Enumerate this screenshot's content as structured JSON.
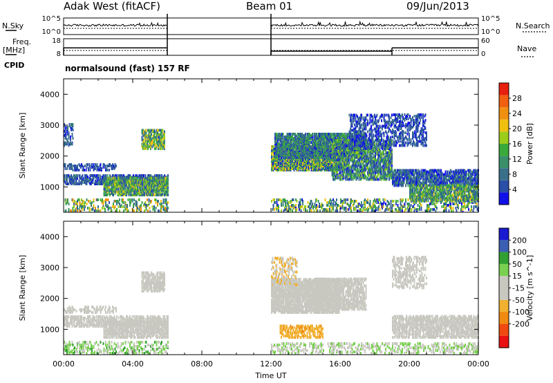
{
  "header": {
    "title": "Adak West (fitACF)",
    "beam": "Beam 01",
    "date": "09/Jun/2013"
  },
  "control_panel": {
    "nsky_label": "N.Sky",
    "nsearch_label": "N.Search",
    "freq_label": "Freq.",
    "freq_unit": "[MHz]",
    "nave_label": "Nave",
    "cpid_label": "CPID",
    "cpid_text": "normalsound (fast) 157 RF",
    "noise_ticks": [
      "10^5",
      "10^0"
    ],
    "noise_ticks_right": [
      "10^5",
      "10^0"
    ],
    "freq_ticks": [
      "18",
      "8"
    ],
    "nave_ticks": [
      "60",
      "0"
    ],
    "freq_segments": [
      {
        "from": 0.0,
        "to": 6.0,
        "value": 12.5
      },
      {
        "from": 12.0,
        "to": 19.0,
        "value": 10.5
      },
      {
        "from": 19.0,
        "to": 24.0,
        "value": 12.5
      }
    ]
  },
  "colors": {
    "power": [
      "#1010e8",
      "#2a4fa8",
      "#3a6f8a",
      "#3a8f6a",
      "#3aaa3a",
      "#9ccc1a",
      "#f0c010",
      "#f09010",
      "#f06010",
      "#e82010"
    ],
    "velocity": [
      "#e81010",
      "#f04a10",
      "#f08a10",
      "#f0b030",
      "#c8c8c0",
      "#c8c8c0",
      "#7ad050",
      "#30a030",
      "#3a5fb0",
      "#1a1ad0"
    ]
  },
  "chart_data": [
    {
      "type": "heatmap",
      "name_tag": "power",
      "ylabel": "Slant Range [km]",
      "ylim": [
        180,
        4500
      ],
      "yticks": [
        1000,
        2000,
        3000,
        4000
      ],
      "xlim": [
        0,
        24
      ],
      "colorbar": {
        "label": "Power [dB]",
        "range": [
          0,
          32
        ],
        "ticks": [
          "4",
          "8",
          "12",
          "16",
          "20",
          "24",
          "28"
        ]
      },
      "echo_regions": [
        {
          "t0": 0.0,
          "t1": 6.0,
          "r0": 180,
          "r1": 550,
          "level": 14,
          "spread": 10,
          "density": 0.22
        },
        {
          "t0": 0.0,
          "t1": 6.0,
          "r0": 1050,
          "r1": 1350,
          "level": 6,
          "spread": 4,
          "density": 0.55
        },
        {
          "t0": 0.0,
          "t1": 3.0,
          "r0": 1500,
          "r1": 1700,
          "level": 5,
          "spread": 3,
          "density": 0.35
        },
        {
          "t0": 2.3,
          "t1": 6.0,
          "r0": 700,
          "r1": 1250,
          "level": 12,
          "spread": 8,
          "density": 0.7
        },
        {
          "t0": 4.5,
          "t1": 5.8,
          "r0": 2200,
          "r1": 2800,
          "level": 14,
          "spread": 8,
          "density": 0.6
        },
        {
          "t0": 0.0,
          "t1": 0.5,
          "r0": 2300,
          "r1": 3000,
          "level": 6,
          "spread": 4,
          "density": 0.35
        },
        {
          "t0": 12.0,
          "t1": 24.0,
          "r0": 180,
          "r1": 550,
          "level": 12,
          "spread": 10,
          "density": 0.25
        },
        {
          "t0": 12.0,
          "t1": 16.0,
          "r0": 1500,
          "r1": 2300,
          "level": 12,
          "spread": 10,
          "density": 0.8
        },
        {
          "t0": 12.2,
          "t1": 17.5,
          "r0": 1900,
          "r1": 2700,
          "level": 9,
          "spread": 7,
          "density": 0.7
        },
        {
          "t0": 15.5,
          "t1": 19.0,
          "r0": 1200,
          "r1": 2500,
          "level": 10,
          "spread": 8,
          "density": 0.55
        },
        {
          "t0": 16.5,
          "t1": 19.0,
          "r0": 2200,
          "r1": 3300,
          "level": 5,
          "spread": 4,
          "density": 0.3
        },
        {
          "t0": 19.0,
          "t1": 24.0,
          "r0": 1000,
          "r1": 1500,
          "level": 6,
          "spread": 5,
          "density": 0.6
        },
        {
          "t0": 20.0,
          "t1": 24.0,
          "r0": 500,
          "r1": 1000,
          "level": 12,
          "spread": 8,
          "density": 0.6
        },
        {
          "t0": 19.0,
          "t1": 21.0,
          "r0": 2300,
          "r1": 3300,
          "level": 5,
          "spread": 3,
          "density": 0.3
        }
      ]
    },
    {
      "type": "heatmap",
      "name_tag": "velocity",
      "ylabel": "Slant Range [km]",
      "ylim": [
        180,
        4500
      ],
      "yticks": [
        1000,
        2000,
        3000,
        4000
      ],
      "xlim": [
        0,
        24
      ],
      "xlabel": "Time UT",
      "xticks": [
        "00:00",
        "04:00",
        "08:00",
        "12:00",
        "16:00",
        "20:00",
        "00:00"
      ],
      "colorbar": {
        "label": "Velocity [m s^-1]",
        "range": [
          -250,
          250
        ],
        "ticks": [
          "200",
          "100",
          "50",
          "15",
          "-15",
          "-50",
          "-100",
          "-200"
        ]
      },
      "echo_regions": [
        {
          "t0": 0.0,
          "t1": 6.0,
          "r0": 180,
          "r1": 550,
          "level": 60,
          "spread": 60,
          "density": 0.25
        },
        {
          "t0": 0.0,
          "t1": 6.0,
          "r0": 1050,
          "r1": 1400,
          "level": 0,
          "spread": 20,
          "density": 0.5
        },
        {
          "t0": 2.3,
          "t1": 6.0,
          "r0": 700,
          "r1": 1250,
          "level": 0,
          "spread": 12,
          "density": 0.6
        },
        {
          "t0": 4.5,
          "t1": 5.8,
          "r0": 2200,
          "r1": 2800,
          "level": 0,
          "spread": 12,
          "density": 0.55
        },
        {
          "t0": 0.0,
          "t1": 3.0,
          "r0": 1500,
          "r1": 1700,
          "level": 0,
          "spread": 14,
          "density": 0.3
        },
        {
          "t0": 12.0,
          "t1": 16.0,
          "r0": 1500,
          "r1": 2600,
          "level": 0,
          "spread": 14,
          "density": 0.75
        },
        {
          "t0": 14.5,
          "t1": 17.5,
          "r0": 1600,
          "r1": 2600,
          "level": 30,
          "spread": 20,
          "density": 0.55
        },
        {
          "t0": 12.5,
          "t1": 15.0,
          "r0": 700,
          "r1": 1100,
          "level": -80,
          "spread": 30,
          "density": 0.45
        },
        {
          "t0": 12.0,
          "t1": 13.5,
          "r0": 2400,
          "r1": 3300,
          "level": -40,
          "spread": 40,
          "density": 0.25
        },
        {
          "t0": 19.0,
          "t1": 24.0,
          "r0": 700,
          "r1": 1400,
          "level": 0,
          "spread": 25,
          "density": 0.55
        },
        {
          "t0": 12.0,
          "t1": 24.0,
          "r0": 180,
          "r1": 500,
          "level": 40,
          "spread": 50,
          "density": 0.25
        },
        {
          "t0": 19.0,
          "t1": 21.0,
          "r0": 2300,
          "r1": 3300,
          "level": 0,
          "spread": 12,
          "density": 0.3
        }
      ]
    }
  ]
}
